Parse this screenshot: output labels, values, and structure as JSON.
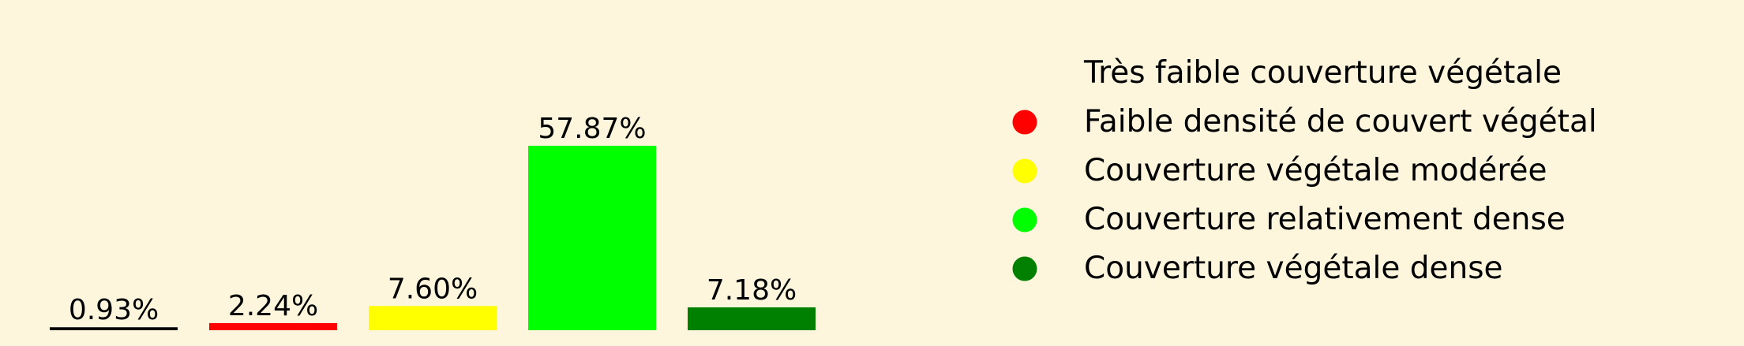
{
  "chart_data": {
    "type": "bar",
    "categories": [
      "Très faible couverture végétale",
      "Faible densité de couvert végétal",
      "Couverture végétale modérée",
      "Couverture relativement dense",
      "Couverture végétale dense"
    ],
    "values": [
      0.93,
      2.24,
      7.6,
      57.87,
      7.18
    ],
    "value_labels": [
      "0.93%",
      "2.24%",
      "7.60%",
      "57.87%",
      "7.18%"
    ],
    "colors": [
      "#000000",
      "#ff0000",
      "#ffff00",
      "#00ff00",
      "#008000"
    ],
    "ylim": [
      0,
      60
    ],
    "grid": false,
    "legend_position": "right",
    "background": "#fdf5dc"
  }
}
